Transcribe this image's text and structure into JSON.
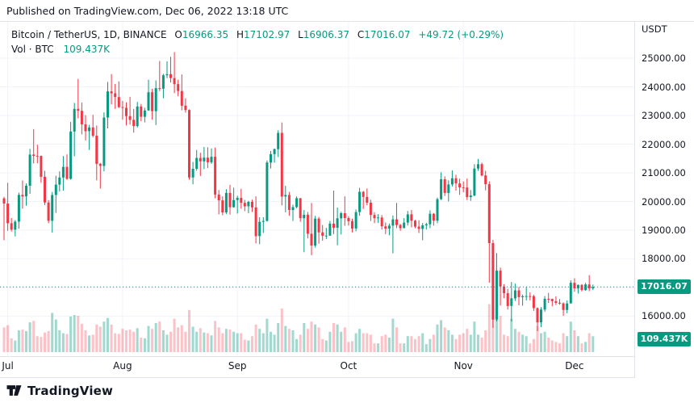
{
  "published_bar": {
    "text": "Published on TradingView.com, Dec 06, 2022 13:18 UTC"
  },
  "legend": {
    "title": "Bitcoin / TetherUS, 1D, BINANCE",
    "ohlc": [
      {
        "label": "O",
        "value": "16966.35"
      },
      {
        "label": "H",
        "value": "17102.97"
      },
      {
        "label": "L",
        "value": "16906.37"
      },
      {
        "label": "C",
        "value": "17016.07"
      }
    ],
    "change": "+49.72 (+0.29%)",
    "vol_label": "Vol · BTC",
    "vol_value": "109.437K"
  },
  "price_axis": {
    "currency": "USDT",
    "labels": [
      "25000.00",
      "24000.00",
      "23000.00",
      "22000.00",
      "21000.00",
      "20000.00",
      "19000.00",
      "18000.00",
      "16000.00"
    ],
    "price_badge": "17016.07",
    "volume_badge": "109.437K"
  },
  "time_axis": {
    "labels": [
      "Jul",
      "Aug",
      "Sep",
      "Oct",
      "Nov",
      "Dec"
    ]
  },
  "footer": {
    "brand": "TradingView"
  },
  "colors": {
    "up": "#089981",
    "down": "#f23645",
    "vol_up": "rgba(8,153,129,0.38)",
    "vol_down": "rgba(242,54,69,0.30)",
    "badge": "#089981",
    "text": "#131722",
    "grid": "#f0f3fa",
    "border": "#e0e3eb",
    "last_price_line": "#089981"
  },
  "chart_data": {
    "type": "candlestick+volume",
    "title": "Bitcoin / TetherUS, 1D, BINANCE",
    "symbol": "BTC/USDT",
    "interval": "1D",
    "start_date": "2022-06-30",
    "end_date": "2022-12-06",
    "xlabel_ticks": [
      "Jul",
      "Aug",
      "Sep",
      "Oct",
      "Nov",
      "Dec"
    ],
    "ylabel": "USDT",
    "ylim": [
      15300,
      25600
    ],
    "price_gridlines": [
      16000,
      17000,
      18000,
      19000,
      20000,
      21000,
      22000,
      23000,
      24000,
      25000
    ],
    "month_tick_indices": [
      1,
      32,
      63,
      93,
      124,
      154
    ],
    "last_price": 17016.07,
    "last_volume_kBTC": 109.437,
    "columns": [
      "open",
      "high",
      "low",
      "close",
      "volume_kBTC"
    ],
    "candles": [
      [
        20108,
        20160,
        18650,
        19926,
        170
      ],
      [
        19926,
        20650,
        18975,
        19242,
        185
      ],
      [
        19242,
        19420,
        18950,
        19018,
        95
      ],
      [
        19018,
        19350,
        18780,
        19297,
        80
      ],
      [
        19297,
        20308,
        19050,
        20231,
        150
      ],
      [
        20231,
        20735,
        19750,
        20175,
        155
      ],
      [
        20175,
        20625,
        19850,
        20548,
        145
      ],
      [
        20548,
        21837,
        20270,
        21637,
        205
      ],
      [
        21637,
        22527,
        21322,
        21592,
        215
      ],
      [
        21592,
        21980,
        21330,
        21591,
        110
      ],
      [
        21591,
        21595,
        20650,
        20860,
        105
      ],
      [
        20860,
        21070,
        19875,
        19963,
        135
      ],
      [
        19963,
        20046,
        19240,
        19325,
        145
      ],
      [
        19325,
        20330,
        18910,
        20226,
        270
      ],
      [
        20226,
        20900,
        19600,
        20587,
        225
      ],
      [
        20587,
        21050,
        20350,
        20836,
        150
      ],
      [
        20836,
        21586,
        20380,
        21208,
        130
      ],
      [
        21208,
        21640,
        20750,
        20790,
        125
      ],
      [
        20790,
        22777,
        20760,
        22439,
        245
      ],
      [
        22439,
        23438,
        21579,
        23231,
        255
      ],
      [
        23231,
        24276,
        22900,
        23164,
        250
      ],
      [
        23164,
        23454,
        22341,
        22690,
        195
      ],
      [
        22690,
        23006,
        22130,
        22451,
        150
      ],
      [
        22451,
        22673,
        21800,
        22582,
        115
      ],
      [
        22582,
        23021,
        22240,
        22292,
        120
      ],
      [
        22292,
        22650,
        20736,
        21311,
        190
      ],
      [
        21311,
        21345,
        20450,
        21240,
        175
      ],
      [
        21240,
        23110,
        21050,
        22930,
        210
      ],
      [
        22930,
        24168,
        22550,
        23843,
        235
      ],
      [
        23843,
        24444,
        23390,
        23773,
        190
      ],
      [
        23773,
        24100,
        23230,
        23643,
        130
      ],
      [
        23643,
        24190,
        23260,
        23293,
        125
      ],
      [
        23293,
        23510,
        22850,
        23271,
        160
      ],
      [
        23271,
        23460,
        22650,
        22978,
        150
      ],
      [
        22978,
        23650,
        22680,
        22846,
        155
      ],
      [
        22846,
        23226,
        22400,
        22630,
        140
      ],
      [
        22630,
        23472,
        22580,
        23313,
        165
      ],
      [
        23313,
        23400,
        22800,
        22954,
        100
      ],
      [
        22954,
        23270,
        22760,
        23175,
        95
      ],
      [
        23175,
        24245,
        23160,
        23810,
        180
      ],
      [
        23810,
        23930,
        22850,
        23149,
        160
      ],
      [
        23149,
        24226,
        22664,
        23954,
        200
      ],
      [
        23954,
        24900,
        23850,
        23934,
        210
      ],
      [
        23934,
        24450,
        23600,
        24402,
        150
      ],
      [
        24402,
        24890,
        24300,
        24441,
        120
      ],
      [
        24441,
        25047,
        24150,
        24305,
        140
      ],
      [
        24305,
        25211,
        23780,
        24095,
        230
      ],
      [
        24095,
        24247,
        23670,
        23854,
        170
      ],
      [
        23854,
        24430,
        23180,
        23342,
        185
      ],
      [
        23342,
        23600,
        23100,
        23191,
        140
      ],
      [
        23191,
        23210,
        20760,
        20834,
        290
      ],
      [
        20834,
        21380,
        20600,
        21139,
        175
      ],
      [
        21139,
        21800,
        21076,
        21516,
        140
      ],
      [
        21516,
        21700,
        20890,
        21398,
        165
      ],
      [
        21398,
        21900,
        21130,
        21528,
        135
      ],
      [
        21528,
        21890,
        21160,
        21368,
        130
      ],
      [
        21368,
        21850,
        21310,
        21559,
        115
      ],
      [
        21559,
        21880,
        20110,
        20241,
        215
      ],
      [
        20241,
        20400,
        19550,
        20038,
        170
      ],
      [
        20038,
        20180,
        19520,
        19616,
        130
      ],
      [
        19616,
        20430,
        19560,
        20298,
        160
      ],
      [
        20298,
        20580,
        19540,
        19799,
        155
      ],
      [
        19799,
        20480,
        19790,
        20050,
        140
      ],
      [
        20050,
        20200,
        19580,
        20126,
        130
      ],
      [
        20126,
        20440,
        19745,
        19952,
        130
      ],
      [
        19952,
        20055,
        19660,
        19832,
        85
      ],
      [
        19832,
        20025,
        19590,
        19988,
        80
      ],
      [
        19988,
        20060,
        19635,
        19794,
        110
      ],
      [
        19794,
        20180,
        18540,
        18790,
        190
      ],
      [
        18790,
        19450,
        18510,
        19290,
        160
      ],
      [
        19290,
        19450,
        18900,
        19320,
        130
      ],
      [
        19320,
        21430,
        19300,
        21360,
        230
      ],
      [
        21360,
        21760,
        21150,
        21650,
        140
      ],
      [
        21650,
        21850,
        21350,
        21827,
        120
      ],
      [
        21827,
        22488,
        21550,
        22395,
        200
      ],
      [
        22395,
        22755,
        19860,
        20173,
        300
      ],
      [
        20173,
        20545,
        19620,
        20226,
        180
      ],
      [
        20226,
        20330,
        19500,
        19701,
        160
      ],
      [
        19701,
        19890,
        19320,
        19802,
        150
      ],
      [
        19802,
        20180,
        19760,
        20113,
        90
      ],
      [
        20113,
        20117,
        19290,
        19416,
        120
      ],
      [
        19416,
        19700,
        18230,
        19537,
        200
      ],
      [
        19537,
        19634,
        18710,
        18875,
        160
      ],
      [
        18875,
        19950,
        18125,
        18461,
        210
      ],
      [
        18461,
        19500,
        18390,
        19401,
        190
      ],
      [
        19401,
        19460,
        18530,
        18921,
        170
      ],
      [
        18921,
        19180,
        18630,
        18804,
        90
      ],
      [
        18804,
        19080,
        18690,
        18809,
        80
      ],
      [
        18809,
        19320,
        18800,
        19227,
        140
      ],
      [
        19227,
        20380,
        18860,
        19079,
        200
      ],
      [
        19079,
        19790,
        18470,
        19412,
        190
      ],
      [
        19412,
        19640,
        18850,
        19591,
        140
      ],
      [
        19591,
        20180,
        19150,
        19422,
        170
      ],
      [
        19422,
        19480,
        19160,
        19312,
        70
      ],
      [
        19312,
        19395,
        18920,
        19056,
        75
      ],
      [
        19056,
        19720,
        18960,
        19629,
        130
      ],
      [
        19629,
        20475,
        19500,
        20336,
        160
      ],
      [
        20336,
        20365,
        19740,
        20158,
        130
      ],
      [
        20158,
        20456,
        19870,
        19955,
        130
      ],
      [
        19955,
        20060,
        19320,
        19527,
        120
      ],
      [
        19527,
        19626,
        19240,
        19417,
        60
      ],
      [
        19417,
        19560,
        19250,
        19440,
        60
      ],
      [
        19440,
        19525,
        19020,
        19132,
        110
      ],
      [
        19132,
        19270,
        18860,
        19051,
        120
      ],
      [
        19051,
        19230,
        18820,
        19155,
        100
      ],
      [
        19155,
        19510,
        18190,
        19375,
        230
      ],
      [
        19375,
        19950,
        19070,
        19176,
        170
      ],
      [
        19176,
        19225,
        18975,
        19068,
        60
      ],
      [
        19068,
        19420,
        19065,
        19262,
        60
      ],
      [
        19262,
        19670,
        19160,
        19550,
        110
      ],
      [
        19550,
        19706,
        19100,
        19328,
        110
      ],
      [
        19328,
        19360,
        19070,
        19122,
        90
      ],
      [
        19122,
        19345,
        18900,
        19042,
        110
      ],
      [
        19042,
        19250,
        18650,
        19166,
        130
      ],
      [
        19166,
        19257,
        19020,
        19204,
        55
      ],
      [
        19204,
        19690,
        19070,
        19570,
        90
      ],
      [
        19570,
        19600,
        19155,
        19330,
        120
      ],
      [
        19330,
        20130,
        19240,
        20080,
        190
      ],
      [
        20080,
        21020,
        20050,
        20773,
        220
      ],
      [
        20773,
        20875,
        20190,
        20296,
        170
      ],
      [
        20296,
        20740,
        20000,
        20593,
        150
      ],
      [
        20593,
        21085,
        20520,
        20809,
        120
      ],
      [
        20809,
        20930,
        20380,
        20628,
        90
      ],
      [
        20628,
        20800,
        20230,
        20490,
        120
      ],
      [
        20490,
        20700,
        20320,
        20485,
        130
      ],
      [
        20485,
        20800,
        20050,
        20151,
        160
      ],
      [
        20151,
        20400,
        20020,
        20208,
        120
      ],
      [
        20208,
        21300,
        20180,
        21148,
        210
      ],
      [
        21148,
        21480,
        21070,
        21301,
        120
      ],
      [
        21301,
        21360,
        20870,
        20908,
        100
      ],
      [
        20908,
        21070,
        20390,
        20602,
        150
      ],
      [
        20602,
        20700,
        17166,
        18547,
        330
      ],
      [
        18547,
        18660,
        15588,
        15880,
        390
      ],
      [
        15880,
        18199,
        15815,
        17586,
        345
      ],
      [
        17586,
        17690,
        16370,
        17034,
        250
      ],
      [
        17034,
        17115,
        16625,
        16799,
        120
      ],
      [
        16799,
        16954,
        16229,
        16353,
        110
      ],
      [
        16353,
        17190,
        15815,
        16619,
        230
      ],
      [
        16619,
        17134,
        16527,
        16900,
        160
      ],
      [
        16900,
        17015,
        16378,
        16662,
        140
      ],
      [
        16662,
        16750,
        16360,
        16692,
        120
      ],
      [
        16692,
        17011,
        16546,
        16700,
        110
      ],
      [
        16700,
        16826,
        16551,
        16697,
        60
      ],
      [
        16697,
        16746,
        16180,
        16280,
        90
      ],
      [
        16280,
        16306,
        15476,
        15781,
        180
      ],
      [
        15781,
        16315,
        15616,
        16228,
        130
      ],
      [
        16228,
        16700,
        16153,
        16603,
        140
      ],
      [
        16603,
        16810,
        16458,
        16599,
        100
      ],
      [
        16599,
        16610,
        16340,
        16522,
        80
      ],
      [
        16522,
        16692,
        16386,
        16464,
        70
      ],
      [
        16464,
        16594,
        16400,
        16444,
        60
      ],
      [
        16444,
        16480,
        16010,
        16217,
        130
      ],
      [
        16217,
        16548,
        16100,
        16444,
        110
      ],
      [
        16444,
        17250,
        16428,
        17163,
        210
      ],
      [
        17163,
        17320,
        16855,
        16967,
        150
      ],
      [
        16967,
        17105,
        16790,
        17088,
        110
      ],
      [
        17088,
        17115,
        16860,
        16908,
        60
      ],
      [
        16908,
        17160,
        16880,
        17105,
        70
      ],
      [
        17105,
        17425,
        16870,
        16966,
        130
      ],
      [
        16966.35,
        17102.97,
        16906.37,
        17016.07,
        109.437
      ]
    ]
  }
}
